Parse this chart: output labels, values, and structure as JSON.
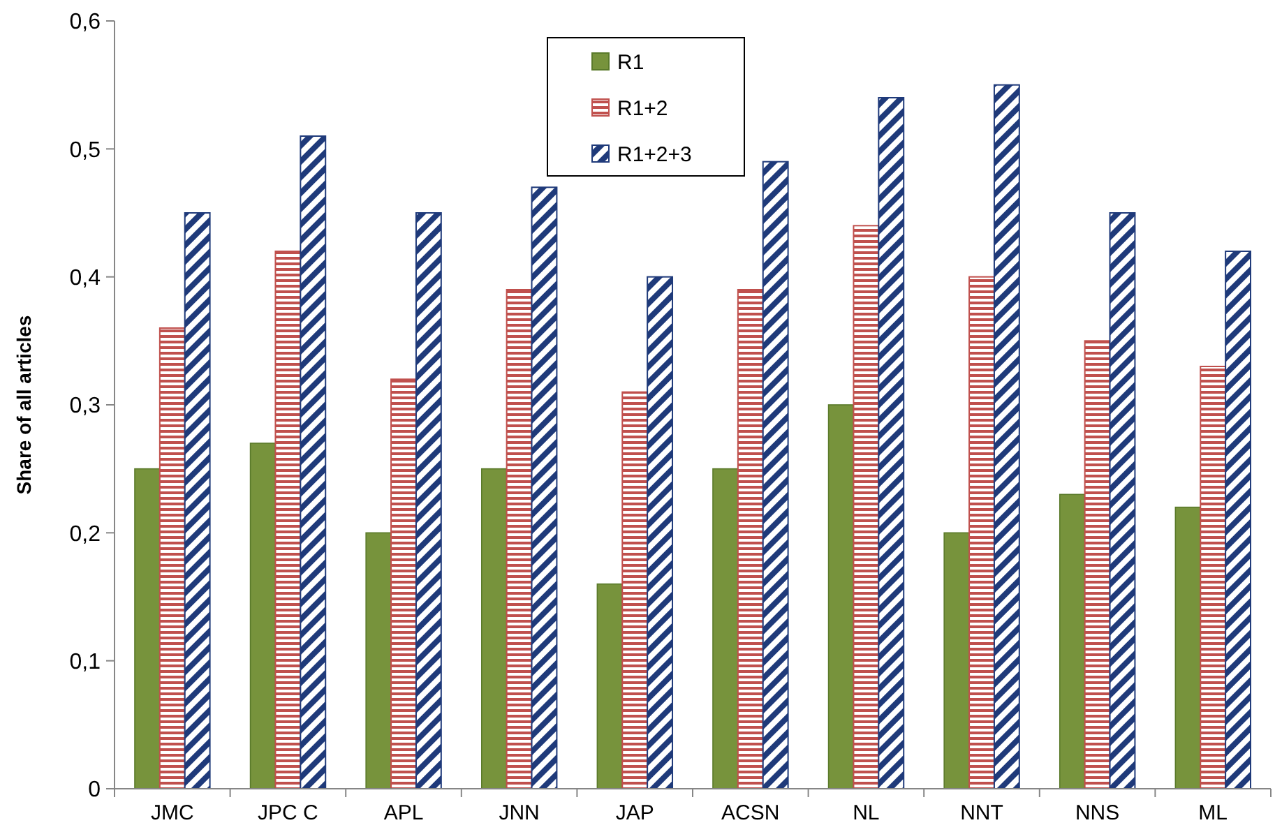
{
  "chart_data": {
    "type": "bar",
    "ylabel": "Share of all articles",
    "categories": [
      "JMC",
      "JPC C",
      "APL",
      "JNN",
      "JAP",
      "ACSN",
      "NL",
      "NNT",
      "NNS",
      "ML"
    ],
    "series": [
      {
        "name": "R1",
        "color": "#77933c",
        "values": [
          0.25,
          0.27,
          0.2,
          0.25,
          0.16,
          0.25,
          0.3,
          0.2,
          0.23,
          0.22
        ]
      },
      {
        "name": "R1+2",
        "color": "#c0504d",
        "values": [
          0.36,
          0.42,
          0.32,
          0.39,
          0.31,
          0.39,
          0.44,
          0.4,
          0.35,
          0.33
        ]
      },
      {
        "name": "R1+2+3",
        "color": "#1f3a7a",
        "values": [
          0.45,
          0.51,
          0.45,
          0.47,
          0.4,
          0.49,
          0.54,
          0.55,
          0.45,
          0.42
        ]
      }
    ],
    "ylim": [
      0,
      0.6
    ],
    "yticks": [
      0,
      {
        "value": 0.1,
        "label": "0,1"
      },
      {
        "value": 0.2,
        "label": "0,2"
      },
      {
        "value": 0.3,
        "label": "0,3"
      },
      {
        "value": 0.4,
        "label": "0,4"
      },
      {
        "value": 0.5,
        "label": "0,5"
      },
      {
        "value": 0.6,
        "label": "0,6"
      }
    ],
    "legend": "top",
    "grid": false
  }
}
